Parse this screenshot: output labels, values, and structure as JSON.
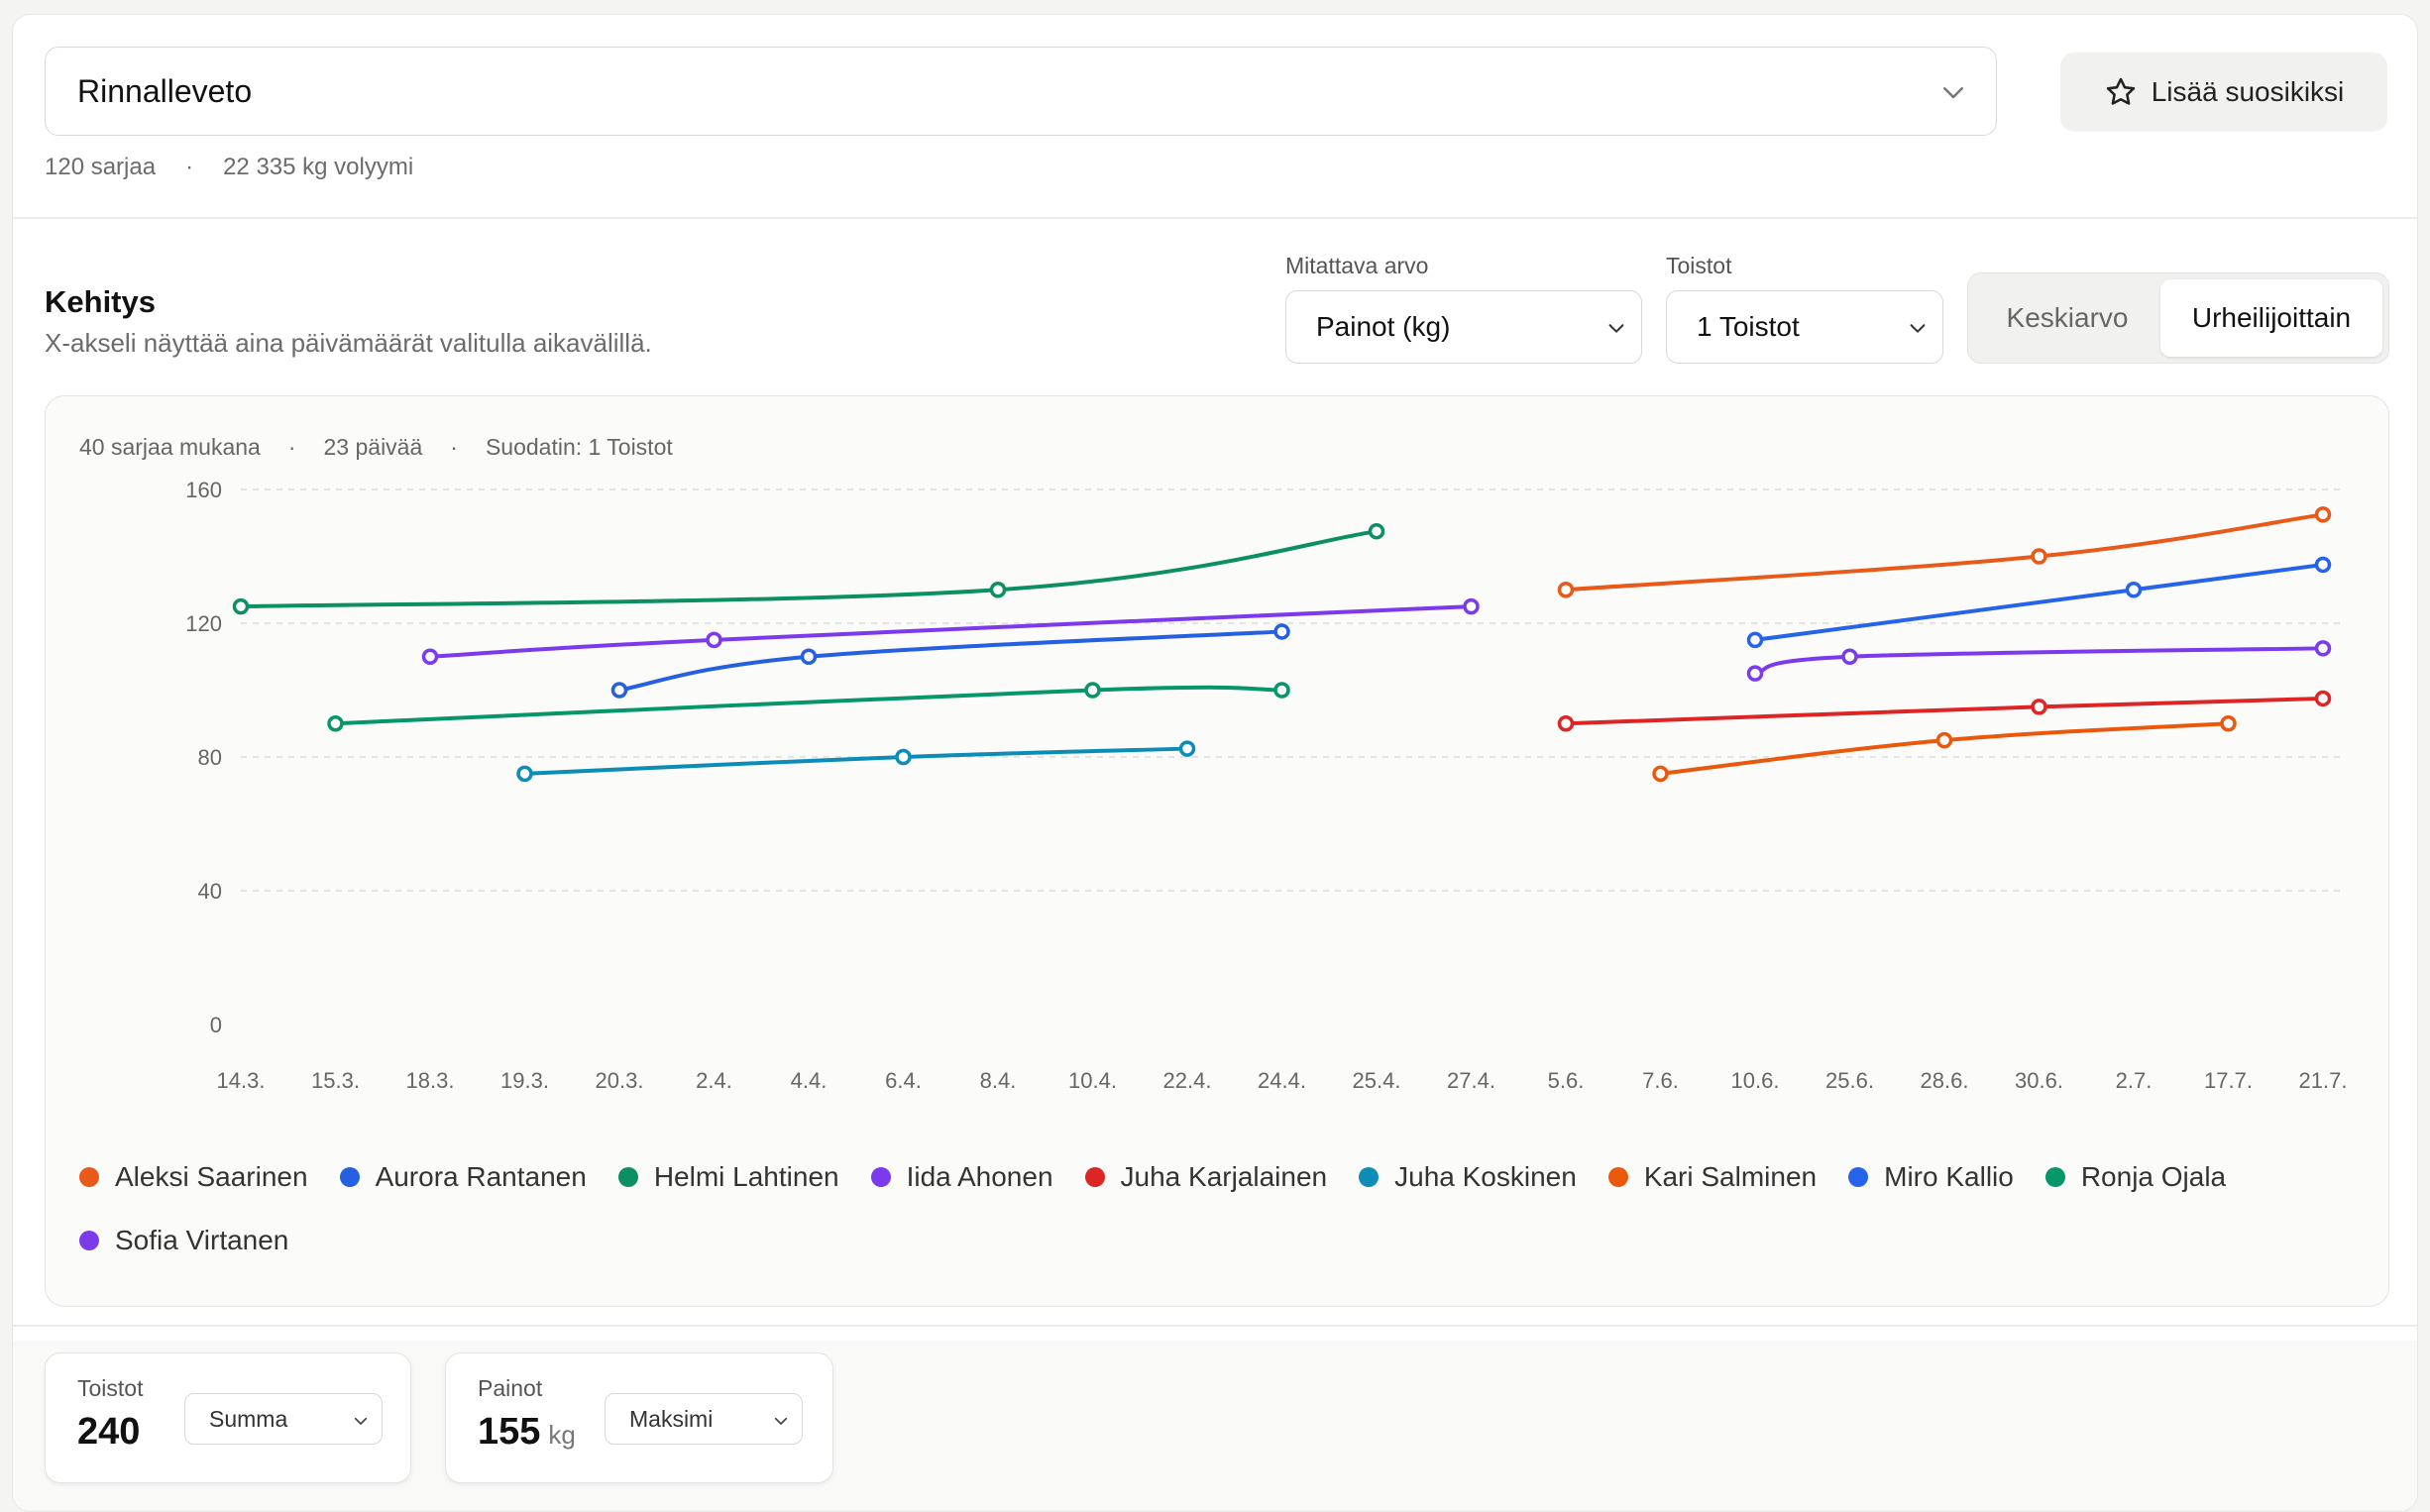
{
  "header": {
    "exercise": "Rinnalleveto",
    "favorite_label": "Lisää suosikiksi",
    "sets": "120 sarjaa",
    "volume": "22 335 kg volyymi"
  },
  "progress": {
    "title": "Kehitys",
    "subtitle": "X-akseli näyttää aina päivämäärät valitulla aikavälillä.",
    "metric_label": "Mitattava arvo",
    "metric_value": "Painot (kg)",
    "reps_label": "Toistot",
    "reps_value": "1 Toistot",
    "toggle": [
      "Keskiarvo",
      "Urheilijoittain"
    ],
    "toggle_active": "Urheilijoittain",
    "chart_meta": [
      "40 sarjaa mukana",
      "23 päivää",
      "Suodatin: 1 Toistot"
    ]
  },
  "chart_data": {
    "type": "line",
    "x": [
      "14.3.",
      "15.3.",
      "18.3.",
      "19.3.",
      "20.3.",
      "2.4.",
      "4.4.",
      "6.4.",
      "8.4.",
      "10.4.",
      "22.4.",
      "24.4.",
      "25.4.",
      "27.4.",
      "5.6.",
      "7.6.",
      "10.6.",
      "25.6.",
      "28.6.",
      "30.6.",
      "2.7.",
      "17.7.",
      "21.7."
    ],
    "yticks": [
      0,
      40,
      80,
      120,
      160
    ],
    "ylim": [
      0,
      160
    ],
    "grid": true,
    "legend_position": "bottom",
    "series": [
      {
        "name": "Aleksi Saarinen",
        "color": "#e8591a",
        "points": [
          [
            "5.6.",
            130
          ],
          [
            "30.6.",
            140
          ],
          [
            "21.7.",
            152.5
          ]
        ]
      },
      {
        "name": "Aurora Rantanen",
        "color": "#2460e0",
        "points": [
          [
            "20.3.",
            100
          ],
          [
            "4.4.",
            110
          ],
          [
            "24.4.",
            117.5
          ]
        ]
      },
      {
        "name": "Helmi Lahtinen",
        "color": "#0c8f63",
        "points": [
          [
            "14.3.",
            125
          ],
          [
            "8.4.",
            130
          ],
          [
            "25.4.",
            147.5
          ]
        ]
      },
      {
        "name": "Iida Ahonen",
        "color": "#7c3aed",
        "points": [
          [
            "18.3.",
            110
          ],
          [
            "2.4.",
            115
          ],
          [
            "27.4.",
            125
          ]
        ]
      },
      {
        "name": "Juha Karjalainen",
        "color": "#dc2626",
        "points": [
          [
            "5.6.",
            90
          ],
          [
            "30.6.",
            95
          ],
          [
            "21.7.",
            97.5
          ]
        ]
      },
      {
        "name": "Juha Koskinen",
        "color": "#0e8cb8",
        "points": [
          [
            "19.3.",
            75
          ],
          [
            "6.4.",
            80
          ],
          [
            "22.4.",
            82.5
          ]
        ]
      },
      {
        "name": "Kari Salminen",
        "color": "#ea580c",
        "points": [
          [
            "7.6.",
            75
          ],
          [
            "28.6.",
            85
          ],
          [
            "17.7.",
            90
          ]
        ]
      },
      {
        "name": "Miro Kallio",
        "color": "#2563eb",
        "points": [
          [
            "10.6.",
            115
          ],
          [
            "2.7.",
            130
          ],
          [
            "21.7.",
            137.5
          ]
        ]
      },
      {
        "name": "Ronja Ojala",
        "color": "#059669",
        "points": [
          [
            "15.3.",
            90
          ],
          [
            "10.4.",
            100
          ],
          [
            "24.4.",
            100
          ]
        ]
      },
      {
        "name": "Sofia Virtanen",
        "color": "#7c3aed",
        "points": [
          [
            "10.6.",
            105
          ],
          [
            "25.6.",
            110
          ],
          [
            "21.7.",
            112.5
          ]
        ]
      }
    ]
  },
  "stats": [
    {
      "label": "Toistot",
      "value": "240",
      "unit": "",
      "agg": "Summa"
    },
    {
      "label": "Painot",
      "value": "155",
      "unit": "kg",
      "agg": "Maksimi"
    }
  ]
}
